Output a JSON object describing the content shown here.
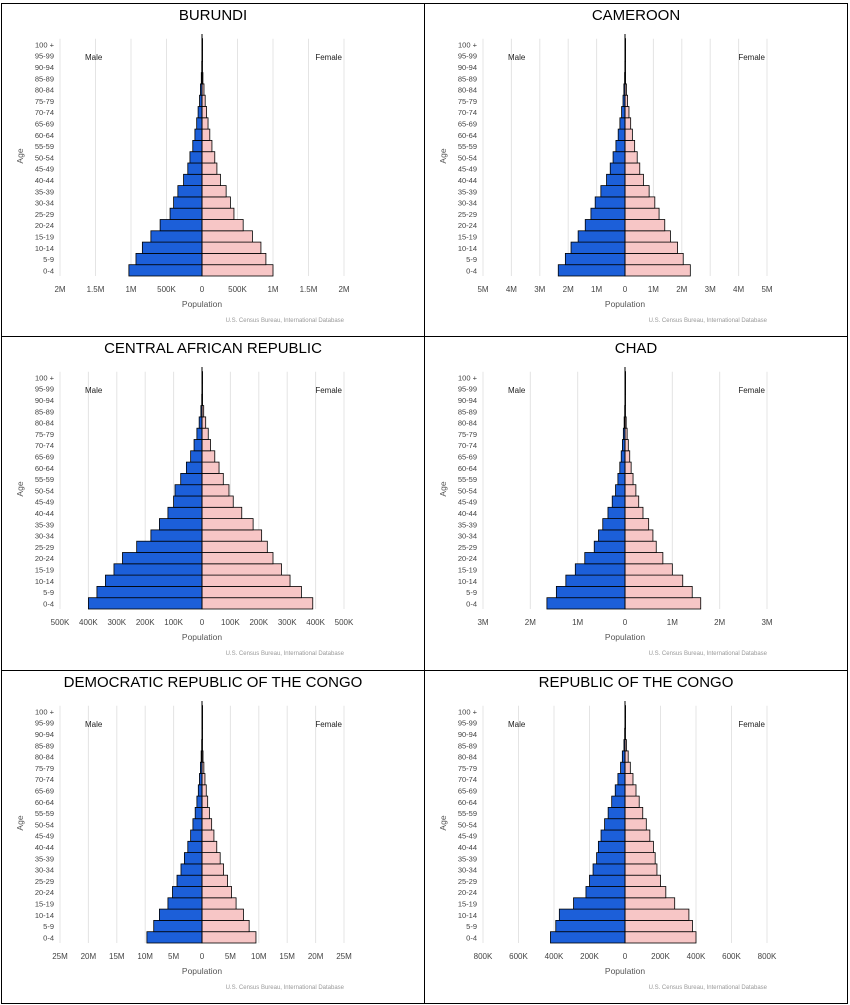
{
  "source_note": "U.S. Census Bureau, International Database",
  "xlabel": "Population",
  "ylabel": "Age",
  "male_label": "Male",
  "female_label": "Female",
  "colors": {
    "male": "#1c5fd9",
    "female": "#f7c6c6",
    "stroke": "#000000",
    "grid": "#e4e4e4"
  },
  "age_groups": [
    "0-4",
    "5-9",
    "10-14",
    "15-19",
    "20-24",
    "25-29",
    "30-34",
    "35-39",
    "40-44",
    "45-49",
    "50-54",
    "55-59",
    "60-64",
    "65-69",
    "70-74",
    "75-79",
    "80-84",
    "85-89",
    "90-94",
    "95-99",
    "100 +"
  ],
  "chart_data": [
    {
      "type": "bar",
      "title": "BURUNDI",
      "orientation": "horizontal-pyramid",
      "xlim": [
        -2000000,
        2000000
      ],
      "ticks": [
        {
          "v": -2000000,
          "t": "2M"
        },
        {
          "v": -1500000,
          "t": "1.5M"
        },
        {
          "v": -1000000,
          "t": "1M"
        },
        {
          "v": -500000,
          "t": "500K"
        },
        {
          "v": 0,
          "t": "0"
        },
        {
          "v": 500000,
          "t": "500K"
        },
        {
          "v": 1000000,
          "t": "1M"
        },
        {
          "v": 1500000,
          "t": "1.5M"
        },
        {
          "v": 2000000,
          "t": "2M"
        }
      ],
      "series": [
        {
          "name": "Male",
          "values": [
            1030000,
            930000,
            840000,
            720000,
            590000,
            450000,
            400000,
            340000,
            260000,
            200000,
            170000,
            130000,
            100000,
            75000,
            55000,
            35000,
            22000,
            10000,
            4000,
            1000,
            300
          ]
        },
        {
          "name": "Female",
          "values": [
            1000000,
            900000,
            830000,
            710000,
            580000,
            450000,
            400000,
            340000,
            260000,
            210000,
            180000,
            140000,
            110000,
            85000,
            65000,
            45000,
            28000,
            13000,
            5000,
            1000,
            300
          ]
        }
      ]
    },
    {
      "type": "bar",
      "title": "CAMEROON",
      "orientation": "horizontal-pyramid",
      "xlim": [
        -5000000,
        5000000
      ],
      "ticks": [
        {
          "v": -5000000,
          "t": "5M"
        },
        {
          "v": -4000000,
          "t": "4M"
        },
        {
          "v": -3000000,
          "t": "3M"
        },
        {
          "v": -2000000,
          "t": "2M"
        },
        {
          "v": -1000000,
          "t": "1M"
        },
        {
          "v": 0,
          "t": "0"
        },
        {
          "v": 1000000,
          "t": "1M"
        },
        {
          "v": 2000000,
          "t": "2M"
        },
        {
          "v": 3000000,
          "t": "3M"
        },
        {
          "v": 4000000,
          "t": "4M"
        },
        {
          "v": 5000000,
          "t": "5M"
        }
      ],
      "series": [
        {
          "name": "Male",
          "values": [
            2350000,
            2100000,
            1900000,
            1650000,
            1400000,
            1200000,
            1050000,
            850000,
            650000,
            520000,
            420000,
            320000,
            240000,
            180000,
            120000,
            70000,
            40000,
            15000,
            5000,
            1000,
            200
          ]
        },
        {
          "name": "Female",
          "values": [
            2300000,
            2050000,
            1850000,
            1600000,
            1400000,
            1200000,
            1050000,
            850000,
            650000,
            520000,
            430000,
            340000,
            260000,
            200000,
            140000,
            90000,
            50000,
            20000,
            6000,
            1000,
            200
          ]
        }
      ]
    },
    {
      "type": "bar",
      "title": "CENTRAL AFRICAN REPUBLIC",
      "orientation": "horizontal-pyramid",
      "xlim": [
        -500000,
        500000
      ],
      "ticks": [
        {
          "v": -500000,
          "t": "500K"
        },
        {
          "v": -400000,
          "t": "400K"
        },
        {
          "v": -300000,
          "t": "300K"
        },
        {
          "v": -200000,
          "t": "200K"
        },
        {
          "v": -100000,
          "t": "100K"
        },
        {
          "v": 0,
          "t": "0"
        },
        {
          "v": 100000,
          "t": "100K"
        },
        {
          "v": 200000,
          "t": "200K"
        },
        {
          "v": 300000,
          "t": "300K"
        },
        {
          "v": 400000,
          "t": "400K"
        },
        {
          "v": 500000,
          "t": "500K"
        }
      ],
      "series": [
        {
          "name": "Male",
          "values": [
            400000,
            370000,
            340000,
            310000,
            280000,
            230000,
            180000,
            150000,
            120000,
            100000,
            95000,
            75000,
            55000,
            40000,
            28000,
            18000,
            10000,
            4000,
            1000,
            300,
            100
          ]
        },
        {
          "name": "Female",
          "values": [
            390000,
            350000,
            310000,
            280000,
            250000,
            230000,
            210000,
            180000,
            140000,
            110000,
            95000,
            75000,
            60000,
            45000,
            30000,
            22000,
            13000,
            6000,
            2000,
            500,
            100
          ]
        }
      ]
    },
    {
      "type": "bar",
      "title": "CHAD",
      "orientation": "horizontal-pyramid",
      "xlim": [
        -3000000,
        3000000
      ],
      "ticks": [
        {
          "v": -3000000,
          "t": "3M"
        },
        {
          "v": -2000000,
          "t": "2M"
        },
        {
          "v": -1000000,
          "t": "1M"
        },
        {
          "v": 0,
          "t": "0"
        },
        {
          "v": 1000000,
          "t": "1M"
        },
        {
          "v": 2000000,
          "t": "2M"
        },
        {
          "v": 3000000,
          "t": "3M"
        }
      ],
      "series": [
        {
          "name": "Male",
          "values": [
            1650000,
            1450000,
            1250000,
            1050000,
            850000,
            650000,
            560000,
            470000,
            360000,
            270000,
            200000,
            150000,
            110000,
            80000,
            55000,
            35000,
            18000,
            7000,
            2000,
            500,
            100
          ]
        },
        {
          "name": "Female",
          "values": [
            1600000,
            1420000,
            1220000,
            1000000,
            800000,
            660000,
            590000,
            500000,
            380000,
            290000,
            230000,
            170000,
            130000,
            100000,
            70000,
            45000,
            25000,
            10000,
            3000,
            500,
            100
          ]
        }
      ]
    },
    {
      "type": "bar",
      "title": "DEMOCRATIC REPUBLIC OF THE CONGO",
      "orientation": "horizontal-pyramid",
      "xlim": [
        -25000000,
        25000000
      ],
      "ticks": [
        {
          "v": -25000000,
          "t": "25M"
        },
        {
          "v": -20000000,
          "t": "20M"
        },
        {
          "v": -15000000,
          "t": "15M"
        },
        {
          "v": -10000000,
          "t": "10M"
        },
        {
          "v": -5000000,
          "t": "5M"
        },
        {
          "v": 0,
          "t": "0"
        },
        {
          "v": 5000000,
          "t": "5M"
        },
        {
          "v": 10000000,
          "t": "10M"
        },
        {
          "v": 15000000,
          "t": "15M"
        },
        {
          "v": 20000000,
          "t": "20M"
        },
        {
          "v": 25000000,
          "t": "25M"
        }
      ],
      "series": [
        {
          "name": "Male",
          "values": [
            9700000,
            8500000,
            7500000,
            6000000,
            5200000,
            4400000,
            3700000,
            3100000,
            2500000,
            2000000,
            1600000,
            1200000,
            900000,
            650000,
            450000,
            280000,
            150000,
            60000,
            15000,
            2000,
            300
          ]
        },
        {
          "name": "Female",
          "values": [
            9500000,
            8300000,
            7300000,
            6000000,
            5200000,
            4500000,
            3800000,
            3200000,
            2600000,
            2100000,
            1700000,
            1300000,
            1000000,
            750000,
            520000,
            330000,
            180000,
            75000,
            20000,
            3000,
            500
          ]
        }
      ]
    },
    {
      "type": "bar",
      "title": "REPUBLIC OF THE CONGO",
      "orientation": "horizontal-pyramid",
      "xlim": [
        -800000,
        800000
      ],
      "ticks": [
        {
          "v": -800000,
          "t": "800K"
        },
        {
          "v": -600000,
          "t": "600K"
        },
        {
          "v": -400000,
          "t": "400K"
        },
        {
          "v": -200000,
          "t": "200K"
        },
        {
          "v": 0,
          "t": "0"
        },
        {
          "v": 200000,
          "t": "200K"
        },
        {
          "v": 400000,
          "t": "400K"
        },
        {
          "v": 600000,
          "t": "600K"
        },
        {
          "v": 800000,
          "t": "800K"
        }
      ],
      "series": [
        {
          "name": "Male",
          "values": [
            420000,
            390000,
            370000,
            290000,
            220000,
            200000,
            180000,
            160000,
            150000,
            135000,
            115000,
            95000,
            75000,
            55000,
            40000,
            25000,
            15000,
            6000,
            2000,
            300,
            100
          ]
        },
        {
          "name": "Female",
          "values": [
            400000,
            380000,
            360000,
            280000,
            230000,
            200000,
            180000,
            170000,
            160000,
            140000,
            120000,
            100000,
            80000,
            62000,
            45000,
            30000,
            18000,
            8000,
            2000,
            400,
            100
          ]
        }
      ]
    }
  ]
}
